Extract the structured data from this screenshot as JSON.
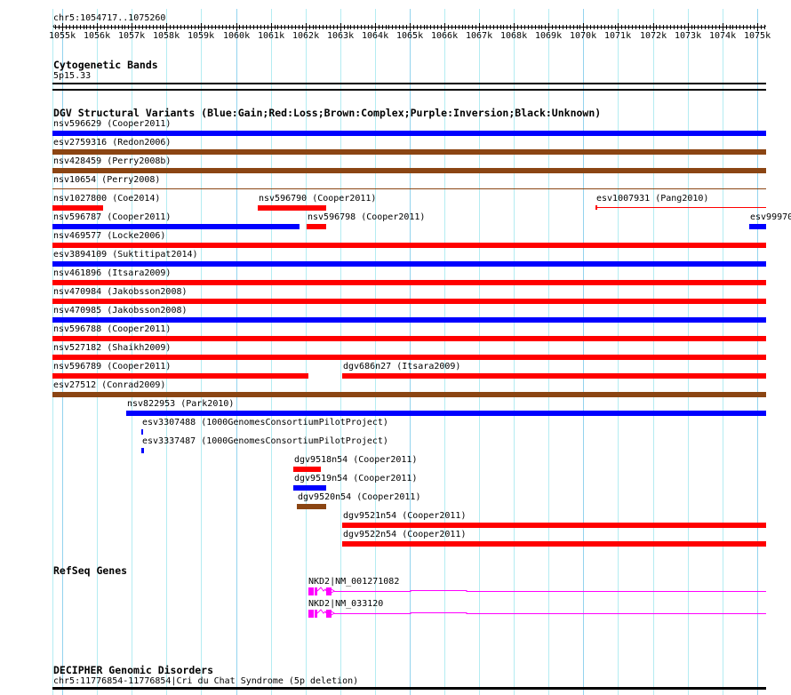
{
  "view": {
    "location": "chr5:1054717..1075260",
    "start": 1054717,
    "end": 1075260
  },
  "ruler": {
    "labels": [
      "1055k",
      "1056k",
      "1057k",
      "1058k",
      "1059k",
      "1060k",
      "1061k",
      "1062k",
      "1063k",
      "1064k",
      "1065k",
      "1066k",
      "1067k",
      "1068k",
      "1069k",
      "1070k",
      "1071k",
      "1072k",
      "1073k",
      "1074k",
      "1075k"
    ]
  },
  "colors": {
    "gain": "#0000ff",
    "loss": "#ff0000",
    "complex": "#8b4513",
    "gene": "#ff00ff",
    "grid": "#b4ecf2"
  },
  "tracks": {
    "cytoband": {
      "title": "Cytogenetic Bands",
      "band": "5p15.33"
    },
    "dgv": {
      "title": "DGV Structural Variants (Blue:Gain;Red:Loss;Brown:Complex;Purple:Inversion;Black:Unknown)",
      "rows": [
        [
          {
            "label": "nsv596629 (Cooper2011)",
            "type": "gain",
            "start": 1054717,
            "end": 1075260
          }
        ],
        [
          {
            "label": "esv2759316 (Redon2006)",
            "type": "complex",
            "start": 1054717,
            "end": 1075260
          }
        ],
        [
          {
            "label": "nsv428459 (Perry2008b)",
            "type": "complex",
            "start": 1054717,
            "end": 1075260
          }
        ],
        [
          {
            "label": "nsv10654 (Perry2008)",
            "type": "complex",
            "start": 1054717,
            "end": 1075260,
            "style": "line"
          }
        ],
        [
          {
            "label": "nsv1027800 (Coe2014)",
            "type": "loss",
            "start": 1054717,
            "end": 1056175
          },
          {
            "label": "nsv596790 (Cooper2011)",
            "type": "loss",
            "start": 1060626,
            "end": 1062596
          },
          {
            "label": "esv1007931 (Pang2010)",
            "type": "loss",
            "start": 1070347,
            "end": 1075260,
            "style": "line"
          }
        ],
        [
          {
            "label": "nsv596787 (Cooper2011)",
            "type": "gain",
            "start": 1054717,
            "end": 1061828
          },
          {
            "label": "nsv596798 (Cooper2011)",
            "type": "loss",
            "start": 1062033,
            "end": 1062596
          },
          {
            "label": "esv99970",
            "type": "gain",
            "start": 1074772,
            "end": 1075260
          }
        ],
        [
          {
            "label": "nsv469577 (Locke2006)",
            "type": "loss",
            "start": 1054717,
            "end": 1075260
          }
        ],
        [
          {
            "label": "esv3894109 (Suktitipat2014)",
            "type": "gain",
            "start": 1054717,
            "end": 1075260
          }
        ],
        [
          {
            "label": "nsv461896 (Itsara2009)",
            "type": "loss",
            "start": 1054717,
            "end": 1075260
          }
        ],
        [
          {
            "label": "nsv470984 (Jakobsson2008)",
            "type": "loss",
            "start": 1054717,
            "end": 1075260
          }
        ],
        [
          {
            "label": "nsv470985 (Jakobsson2008)",
            "type": "gain",
            "start": 1054717,
            "end": 1075260
          }
        ],
        [
          {
            "label": "nsv596788 (Cooper2011)",
            "type": "loss",
            "start": 1054717,
            "end": 1075260
          }
        ],
        [
          {
            "label": "nsv527182 (Shaikh2009)",
            "type": "loss",
            "start": 1054717,
            "end": 1075260
          }
        ],
        [
          {
            "label": "nsv596789 (Cooper2011)",
            "type": "loss",
            "start": 1054717,
            "end": 1062084
          },
          {
            "label": "dgv686n27 (Itsara2009)",
            "type": "loss",
            "start": 1063056,
            "end": 1075260
          }
        ],
        [
          {
            "label": "esv27512 (Conrad2009)",
            "type": "complex",
            "start": 1054717,
            "end": 1075260
          }
        ],
        [
          {
            "label": "nsv822953 (Park2010)",
            "type": "gain",
            "start": 1056840,
            "end": 1075260
          }
        ],
        [
          {
            "label": "esv3307488 (1000GenomesConsortiumPilotProject)",
            "type": "gain",
            "start": 1057275,
            "end": 1057326
          }
        ],
        [
          {
            "label": "esv3337487 (1000GenomesConsortiumPilotProject)",
            "type": "gain",
            "start": 1057275,
            "end": 1057352
          }
        ],
        [
          {
            "label": "dgv9518n54 (Cooper2011)",
            "type": "loss",
            "start": 1061649,
            "end": 1062442
          }
        ],
        [
          {
            "label": "dgv9519n54 (Cooper2011)",
            "type": "gain",
            "start": 1061649,
            "end": 1062596
          }
        ],
        [
          {
            "label": "dgv9520n54 (Cooper2011)",
            "type": "complex",
            "start": 1061752,
            "end": 1062596
          }
        ],
        [
          {
            "label": "dgv9521n54 (Cooper2011)",
            "type": "loss",
            "start": 1063056,
            "end": 1075260
          }
        ],
        [
          {
            "label": "dgv9522n54 (Cooper2011)",
            "type": "loss",
            "start": 1063056,
            "end": 1075260
          }
        ]
      ]
    },
    "refseq": {
      "title": "RefSeq Genes",
      "transcripts": [
        {
          "label": "NKD2|NM_001271082",
          "start": 1062084
        },
        {
          "label": "NKD2|NM_033120",
          "start": 1062084
        }
      ]
    },
    "decipher": {
      "title": "DECIPHER Genomic Disorders",
      "feature": "chr5:11776854-11776854|Cri du Chat Syndrome (5p deletion)"
    }
  }
}
